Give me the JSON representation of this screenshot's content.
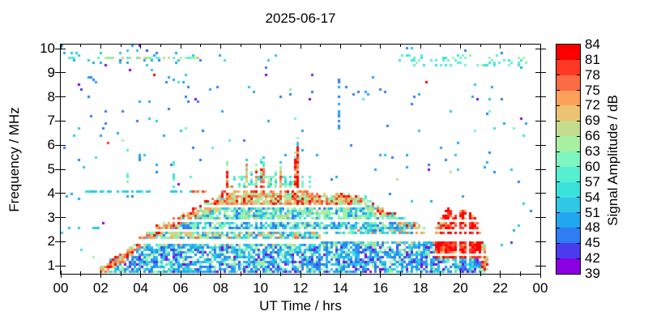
{
  "chart_data": {
    "type": "heatmap",
    "title": "2025-06-17",
    "xlabel": "UT Time / hrs",
    "ylabel": "Frequency / MHz",
    "zlabel": "Signal Amplitude / dB",
    "x_range_hr": [
      0,
      24
    ],
    "y_range_mhz": [
      0.67,
      10.17
    ],
    "z_range_db": [
      39,
      84
    ],
    "z_step_db": 3,
    "rng_seed": 7,
    "x_ticks": {
      "major_hours": [
        0,
        2,
        4,
        6,
        8,
        10,
        12,
        14,
        16,
        18,
        20,
        22,
        24
      ],
      "labels": [
        "00",
        "02",
        "04",
        "06",
        "08",
        "10",
        "12",
        "14",
        "16",
        "18",
        "20",
        "22",
        "00"
      ],
      "minor_hours": [
        1,
        3,
        5,
        7,
        9,
        11,
        13,
        15,
        17,
        19,
        21,
        23
      ]
    },
    "y_ticks": {
      "mhz": [
        1,
        2,
        3,
        4,
        5,
        6,
        7,
        8,
        9,
        10
      ],
      "labels": [
        "1",
        "2",
        "3",
        "4",
        "5",
        "6",
        "7",
        "8",
        "9",
        "10"
      ]
    },
    "z_ticks": {
      "db": [
        39,
        42,
        45,
        48,
        51,
        54,
        57,
        60,
        63,
        66,
        69,
        72,
        75,
        78,
        81,
        84
      ],
      "labels": [
        "39",
        "42",
        "45",
        "48",
        "51",
        "54",
        "57",
        "60",
        "63",
        "66",
        "69",
        "72",
        "75",
        "78",
        "81",
        "84"
      ]
    },
    "colorbar_colors_low_to_high": [
      "#8A00E2",
      "#4A3BEF",
      "#2E7DF3",
      "#21A7F0",
      "#2EC7E5",
      "#3BE2DC",
      "#55EFD2",
      "#7CF5BE",
      "#A7F0A2",
      "#C3DB8C",
      "#EBC372",
      "#FDA05A",
      "#FB6C44",
      "#FF3823",
      "#FB0000"
    ],
    "palettes": {
      "violet": [
        39.5,
        44
      ],
      "blue": [
        45,
        49.5
      ],
      "lightblue": [
        48,
        51
      ],
      "cyan": [
        51,
        55
      ],
      "teal": [
        54,
        58
      ],
      "green": [
        60,
        66
      ],
      "pale": [
        61,
        66
      ],
      "tan": [
        66,
        71.5
      ],
      "orange": [
        72,
        78
      ],
      "red": [
        79.5,
        84
      ],
      "green-cyan-mix": [
        54,
        64
      ],
      "blue-cyan": [
        45,
        54
      ],
      "tan-mix": [
        58,
        71
      ],
      "orange-red": [
        70,
        83
      ]
    },
    "f_region_arc": {
      "description": "Daytime ionospheric echo arc: onset ~02 UT at 1 MHz, plateau ~4 MHz from ~08-15 UT, decay to ~21.3 UT",
      "envelope_hr_mhz": [
        [
          2.0,
          0.95
        ],
        [
          2.5,
          1.2
        ],
        [
          3.0,
          1.5
        ],
        [
          3.5,
          1.8
        ],
        [
          4.0,
          2.15
        ],
        [
          4.5,
          2.45
        ],
        [
          5.0,
          2.7
        ],
        [
          5.5,
          2.9
        ],
        [
          6.0,
          3.1
        ],
        [
          6.5,
          3.3
        ],
        [
          7.0,
          3.5
        ],
        [
          7.5,
          3.7
        ],
        [
          8.0,
          3.85
        ],
        [
          8.4,
          3.98
        ],
        [
          14.8,
          3.98
        ],
        [
          15.3,
          3.8
        ],
        [
          15.9,
          3.5
        ],
        [
          16.5,
          3.25
        ],
        [
          17.0,
          3.0
        ],
        [
          17.5,
          2.85
        ],
        [
          18.0,
          2.65
        ],
        [
          18.5,
          2.45
        ],
        [
          19.0,
          2.2
        ],
        [
          19.5,
          2.0
        ],
        [
          20.0,
          1.75
        ],
        [
          20.5,
          1.5
        ],
        [
          21.0,
          1.2
        ],
        [
          21.35,
          0.95
        ]
      ]
    },
    "leading_edge": {
      "t_max": 8.4,
      "depth": 0.42,
      "d": 0.9,
      "w": {
        "orange": 0.4,
        "red": 0.2,
        "tan": 0.2,
        "green": 0.12,
        "cyan": 0.08
      }
    },
    "trailing_edge": {
      "t_min": 14.8,
      "depth": 0.35,
      "d": 0.85,
      "w": {
        "green": 0.3,
        "cyan": 0.2,
        "orange": 0.2,
        "red": 0.15,
        "tan": 0.15
      }
    },
    "interior_zones": [
      {
        "f": [
          3.54,
          4.02
        ],
        "d": 0.9,
        "w": {
          "orange": 0.3,
          "tan": 0.25,
          "red": 0.15,
          "green": 0.2,
          "pale": 0.1
        }
      },
      {
        "f": [
          2.96,
          3.54
        ],
        "d": 0.82,
        "w": {
          "cyan": 0.28,
          "green": 0.27,
          "pale": 0.2,
          "blue": 0.15,
          "tan": 0.1
        }
      },
      {
        "f": [
          2.56,
          2.96
        ],
        "d": 0.78,
        "w": {
          "cyan": 0.35,
          "blue": 0.3,
          "green": 0.2,
          "pale": 0.15
        }
      },
      {
        "f": [
          2.08,
          2.56
        ],
        "d": 0.8,
        "w": {
          "green": 0.25,
          "cyan": 0.25,
          "tan": 0.2,
          "orange": 0.15,
          "blue": 0.15
        }
      },
      {
        "f": [
          1.86,
          2.08
        ],
        "d": 0.78,
        "w": {
          "cyan": 0.3,
          "blue": 0.25,
          "green": 0.2,
          "tan": 0.15,
          "lightblue": 0.1
        }
      },
      {
        "f": [
          0.6,
          1.86
        ],
        "d": 0.72,
        "w": {
          "blue": 0.3,
          "cyan": 0.25,
          "lightblue": 0.12,
          "green": 0.13,
          "violet": 0.12,
          "pale": 0.08
        }
      }
    ],
    "spikes": [
      [
        8.35,
        0.12,
        5.35,
        "red"
      ],
      [
        8.55,
        0.08,
        4.7,
        "orange"
      ],
      [
        8.95,
        0.1,
        4.65,
        "green"
      ],
      [
        9.3,
        0.14,
        5.6,
        "orange"
      ],
      [
        9.55,
        0.09,
        4.9,
        "green"
      ],
      [
        9.8,
        0.11,
        5.25,
        "orange"
      ],
      [
        10.1,
        0.14,
        5.85,
        "mixed"
      ],
      [
        10.45,
        0.11,
        5.1,
        "green"
      ],
      [
        10.75,
        0.09,
        4.95,
        "green"
      ],
      [
        11.0,
        0.12,
        5.3,
        "orange"
      ],
      [
        11.3,
        0.1,
        5.0,
        "green"
      ],
      [
        11.55,
        0.08,
        5.25,
        "orange"
      ],
      [
        11.82,
        0.16,
        6.45,
        "red"
      ],
      [
        11.9,
        0.06,
        7.25,
        "orange"
      ],
      [
        12.15,
        0.08,
        4.8,
        "green"
      ],
      [
        12.5,
        0.09,
        4.55,
        "green"
      ],
      [
        13.0,
        0.07,
        4.3,
        "green"
      ]
    ],
    "spike_type_w": {
      "red": {
        "red": 0.6,
        "orange": 0.3,
        "tan": 0.1
      },
      "orange": {
        "orange": 0.5,
        "red": 0.2,
        "tan": 0.2,
        "green": 0.1
      },
      "green": {
        "green": 0.45,
        "pale": 0.2,
        "cyan": 0.2,
        "tan": 0.15
      },
      "mixed": {
        "orange": 0.3,
        "green": 0.3,
        "red": 0.2,
        "cyan": 0.2
      }
    },
    "spike_fringe_w": {
      "green": 0.5,
      "cyan": 0.3,
      "pale": 0.2
    },
    "e_region_blob": {
      "description": "Strong red sporadic-E blob 19-21.3 UT, 1-3.5 MHz, amplitude ~81-84 dB",
      "start_hr": 18.75,
      "end_hr": 21.45,
      "top_hr_mhz": [
        [
          18.75,
          2.5
        ],
        [
          19.0,
          2.95
        ],
        [
          19.2,
          3.2
        ],
        [
          19.45,
          3.55
        ],
        [
          19.6,
          3.05
        ],
        [
          19.85,
          3.2
        ],
        [
          20.05,
          3.3
        ],
        [
          20.25,
          3.3
        ],
        [
          20.5,
          3.15
        ],
        [
          20.7,
          3.1
        ],
        [
          20.9,
          2.8
        ],
        [
          21.1,
          2.3
        ],
        [
          21.3,
          1.6
        ],
        [
          21.45,
          0.95
        ]
      ],
      "dropout_hrs": [
        19.9,
        20.38
      ],
      "core_w": {
        "red": 0.8,
        "orange": 0.15,
        "tan": 0.05
      },
      "fringe_w": {
        "tan": 0.3,
        "orange": 0.3,
        "green": 0.25,
        "red": 0.15
      },
      "bottom_w": {
        "blue": 0.3,
        "cyan": 0.3,
        "violet": 0.15,
        "green": 0.15,
        "lightblue": 0.1
      }
    },
    "blank_bands": [
      {
        "f": [
          4.02,
          4.18
        ],
        "t": [
          0,
          24
        ]
      },
      {
        "f": [
          3.44,
          3.54
        ],
        "t": [
          7,
          15.2
        ]
      },
      {
        "f": [
          2.84,
          2.96
        ],
        "t": [
          3.5,
          24
        ]
      },
      {
        "f": [
          2.46,
          2.56
        ],
        "t": [
          4.5,
          14.5
        ]
      },
      {
        "f": [
          1.88,
          2.08
        ],
        "t": [
          0,
          13
        ]
      },
      {
        "f": [
          2.0,
          2.28
        ],
        "t": [
          13,
          24
        ]
      },
      {
        "f": [
          1.4,
          1.47
        ],
        "t": [
          18.6,
          21.5
        ]
      },
      {
        "f": [
          2.46,
          2.54
        ],
        "t": [
          17.5,
          21.9
        ]
      }
    ],
    "dashed_lines": [
      {
        "f_mhz": 4.1,
        "t": [
          1.0,
          6.6
        ],
        "palette": "cyan",
        "density": 0.45
      },
      {
        "f_mhz": 4.1,
        "t": [
          6.6,
          12.6
        ],
        "palette": "orange-red",
        "density": 0.55
      },
      {
        "f_mhz": 9.65,
        "t": [
          0.1,
          7.0
        ],
        "palette": "tan-mix",
        "density": 0.5
      },
      {
        "f_mhz": 2.56,
        "t": [
          0.4,
          2.2
        ],
        "palette": "cyan",
        "density": 0.3
      }
    ],
    "noise_bands": [
      {
        "f": [
          9.3,
          9.75
        ],
        "t": [
          16.9,
          23.4
        ],
        "density": 0.22,
        "palette": "green-cyan-mix"
      },
      {
        "f": [
          8.1,
          8.3
        ],
        "t": [
          11.3,
          16.6
        ],
        "density": 0.15,
        "palette": "blue"
      },
      {
        "f": [
          9.4,
          9.85
        ],
        "t": [
          0.1,
          7.0
        ],
        "density": 0.08,
        "palette": "blue-cyan"
      },
      {
        "f": [
          4.2,
          4.75
        ],
        "t": [
          8.2,
          12.6
        ],
        "density": 0.18,
        "palette": "green-cyan-mix"
      }
    ],
    "vertical_streaks": [
      {
        "t": [
          13.85,
          14.0
        ],
        "f": [
          6.5,
          8.75
        ],
        "density": 0.55,
        "palette": "blue"
      },
      {
        "t": [
          5.62,
          5.76
        ],
        "f": [
          3.95,
          5.3
        ],
        "density": 0.45,
        "palette": "green-cyan-mix"
      },
      {
        "t": [
          3.3,
          3.45
        ],
        "f": [
          4.4,
          6.15
        ],
        "density": 0.3,
        "palette": "green-cyan-mix"
      },
      {
        "t": [
          3.9,
          4.02
        ],
        "f": [
          5.3,
          5.6
        ],
        "density": 0.8,
        "palette": "blue"
      }
    ],
    "background_noise_w": {
      "blue": 0.45,
      "cyan": 0.2,
      "lightblue": 0.1,
      "violet": 0.1,
      "green": 0.08,
      "teal": 0.04,
      "tan": 0.02,
      "red": 0.01
    },
    "background_noise_regions": [
      {
        "t": [
          0,
          7
        ],
        "f": [
          6.3,
          10.17
        ],
        "density": 0.028
      },
      {
        "t": [
          0,
          7
        ],
        "f": [
          3.8,
          6.3
        ],
        "density": 0.012
      },
      {
        "t": [
          0,
          2.2
        ],
        "f": [
          0.67,
          3.8
        ],
        "density": 0.008
      },
      {
        "t": [
          7,
          17
        ],
        "f": [
          4.3,
          10.17
        ],
        "density": 0.007
      },
      {
        "t": [
          17,
          24
        ],
        "f": [
          3.6,
          10.17
        ],
        "density": 0.012
      },
      {
        "t": [
          21.5,
          24
        ],
        "f": [
          0.67,
          3.6
        ],
        "density": 0.01
      },
      {
        "t": [
          12,
          21
        ],
        "f": [
          0.67,
          4.3
        ],
        "density": 0.004
      }
    ]
  }
}
